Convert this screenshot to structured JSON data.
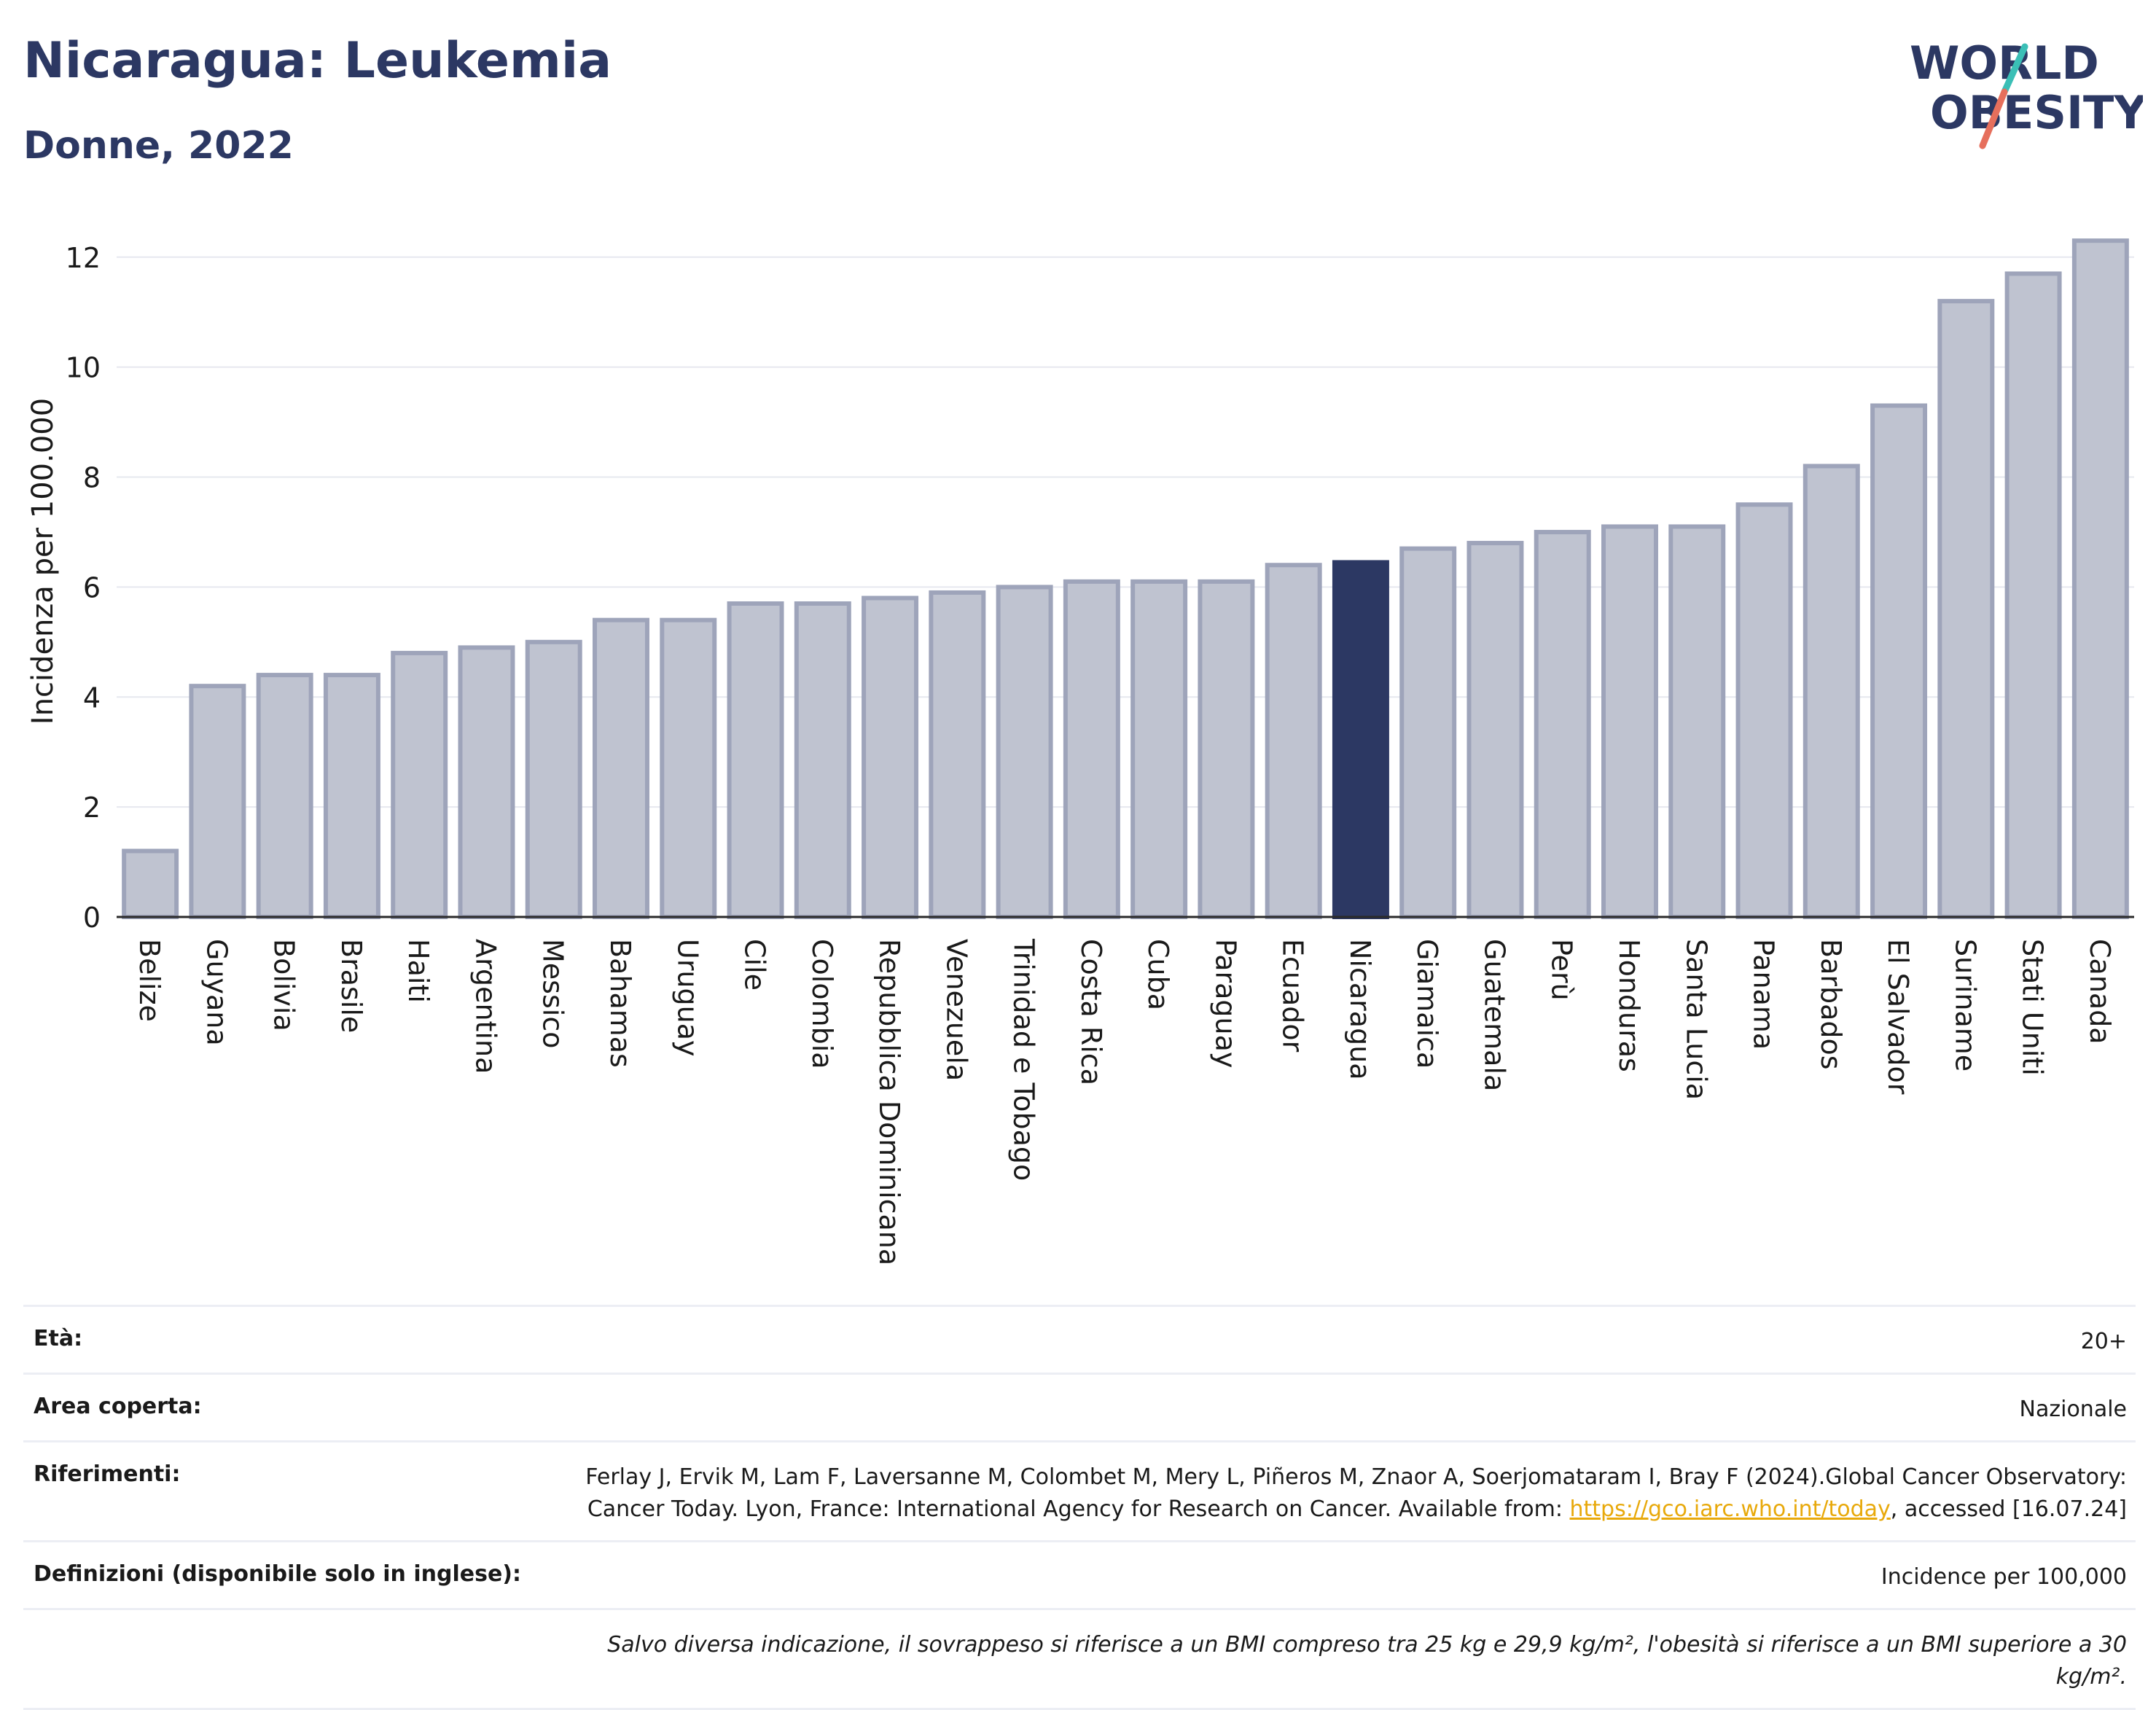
{
  "header": {
    "title": "Nicaragua: Leukemia",
    "subtitle": "Donne, 2022",
    "logo_line1": "WORLD",
    "logo_line2": "OBESITY"
  },
  "colors": {
    "bar": "#bfc3d0",
    "bar_stroke": "#9ea4ba",
    "highlight": "#2c3863",
    "title": "#2c3863"
  },
  "chart_data": {
    "type": "bar",
    "ylabel": "Incidenza per 100.000",
    "xlabel": "",
    "ylim": [
      0,
      12.7
    ],
    "yticks": [
      0,
      2,
      4,
      6,
      8,
      10,
      12
    ],
    "grid": true,
    "highlight": "Nicaragua",
    "categories": [
      "Belize",
      "Guyana",
      "Bolivia",
      "Brasile",
      "Haiti",
      "Argentina",
      "Messico",
      "Bahamas",
      "Uruguay",
      "Cile",
      "Colombia",
      "Repubblica Dominicana",
      "Venezuela",
      "Trinidad e Tobago",
      "Costa Rica",
      "Cuba",
      "Paraguay",
      "Ecuador",
      "Nicaragua",
      "Giamaica",
      "Guatemala",
      "Perù",
      "Honduras",
      "Santa Lucia",
      "Panama",
      "Barbados",
      "El Salvador",
      "Suriname",
      "Stati Uniti",
      "Canada"
    ],
    "values": [
      1.2,
      4.2,
      4.4,
      4.4,
      4.8,
      4.9,
      5.0,
      5.4,
      5.4,
      5.7,
      5.7,
      5.8,
      5.9,
      6.0,
      6.1,
      6.1,
      6.1,
      6.4,
      6.45,
      6.7,
      6.8,
      7.0,
      7.1,
      7.1,
      7.5,
      8.2,
      9.3,
      11.2,
      11.7,
      12.3
    ]
  },
  "info": {
    "age_label": "Età:",
    "age_value": "20+",
    "area_label": "Area coperta:",
    "area_value": "Nazionale",
    "ref_label": "Riferimenti:",
    "ref_text_1": "Ferlay J, Ervik M, Lam F, Laversanne M, Colombet M, Mery L, Piñeros M, Znaor A, Soerjomataram I, Bray F (2024).Global Cancer Observatory: Cancer Today. Lyon, France: International Agency for Research on Cancer. Available from: ",
    "ref_link": "https://gco.iarc.who.int/today",
    "ref_text_2": ", accessed [16.07.24]",
    "def_label": "Definizioni (disponibile solo in inglese):",
    "def_value": "Incidence per 100,000",
    "note": "Salvo diversa indicazione, il sovrappeso si riferisce a un BMI compreso tra 25 kg e 29,9 kg/m², l'obesità si riferisce a un BMI superiore a 30 kg/m²."
  }
}
